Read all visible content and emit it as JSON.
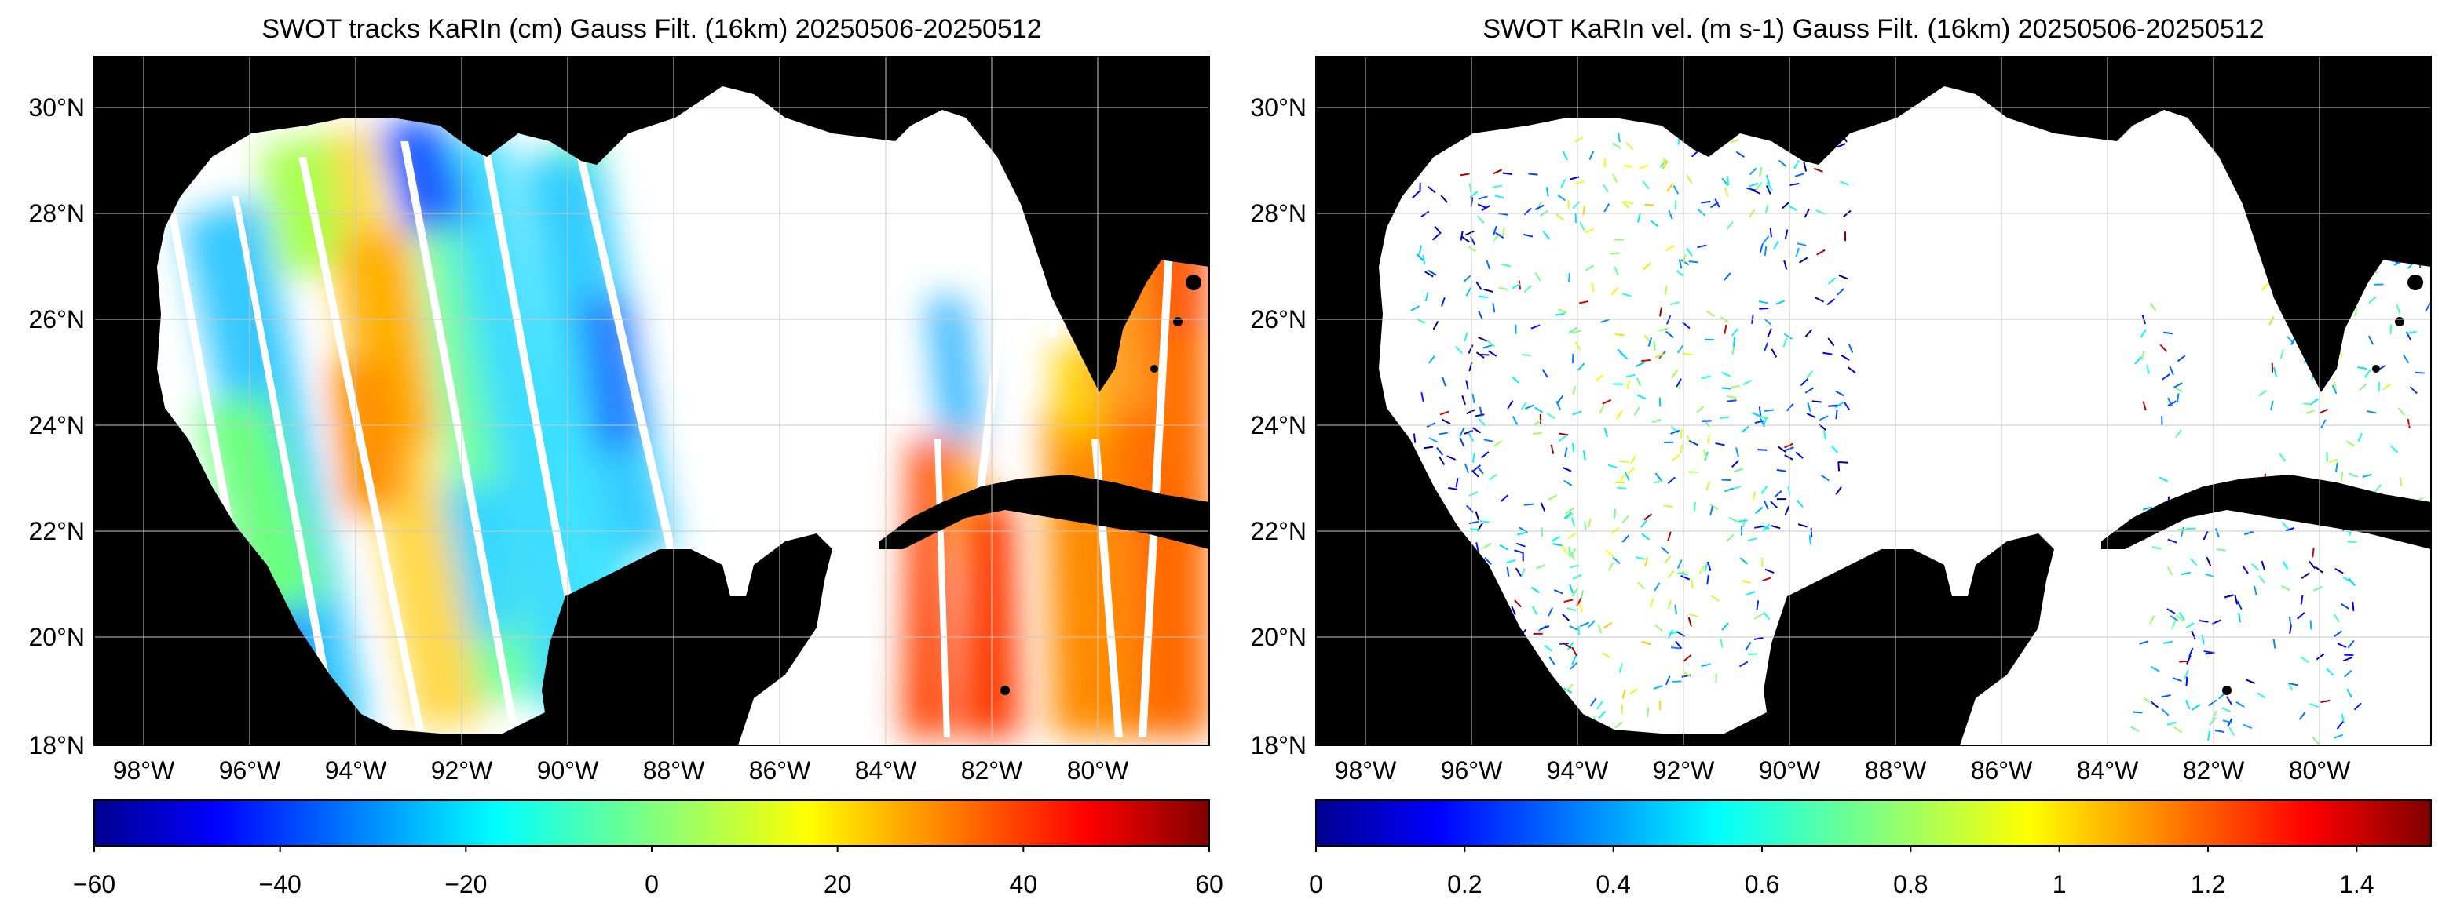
{
  "panels": [
    {
      "id": "ssh",
      "title": "SWOT tracks KaRIn (cm) Gauss Filt. (16km) 20250506-20250512",
      "lat_labels": [
        "30°N",
        "28°N",
        "26°N",
        "24°N",
        "22°N",
        "20°N",
        "18°N"
      ],
      "lon_labels": [
        "98°W",
        "96°W",
        "94°W",
        "92°W",
        "90°W",
        "88°W",
        "86°W",
        "84°W",
        "82°W",
        "80°W"
      ],
      "colorbar": {
        "colormap": "jet",
        "range": [
          -60,
          60
        ],
        "tick_labels": [
          "−60",
          "−40",
          "−20",
          "0",
          "20",
          "40",
          "60"
        ]
      }
    },
    {
      "id": "vel",
      "title": "SWOT KaRIn vel. (m s-1) Gauss Filt. (16km) 20250506-20250512",
      "lat_labels": [
        "30°N",
        "28°N",
        "26°N",
        "24°N",
        "22°N",
        "20°N",
        "18°N"
      ],
      "lon_labels": [
        "98°W",
        "96°W",
        "94°W",
        "92°W",
        "90°W",
        "88°W",
        "86°W",
        "84°W",
        "82°W",
        "80°W"
      ],
      "colorbar": {
        "colormap": "jet",
        "range": [
          0,
          1.5
        ],
        "tick_labels": [
          "0",
          "0.2",
          "0.4",
          "0.6",
          "0.8",
          "1",
          "1.2",
          "1.4"
        ]
      }
    }
  ],
  "map_extent": {
    "lon": [
      -99,
      -78
    ],
    "lat": [
      18,
      31
    ]
  },
  "colors": {
    "land": "#000000",
    "ocean": "#ffffff",
    "grid": "#c8c8c8"
  }
}
